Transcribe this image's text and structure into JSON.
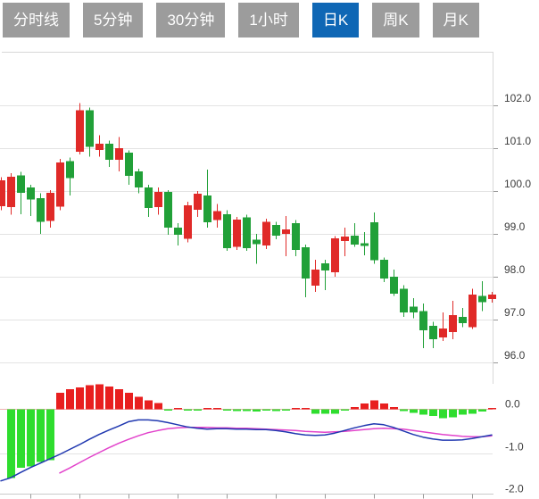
{
  "app": {
    "name": "stock-kline-viewer"
  },
  "tabs": [
    {
      "label": "分时线",
      "active": false
    },
    {
      "label": "5分钟",
      "active": false
    },
    {
      "label": "30分钟",
      "active": false
    },
    {
      "label": "1小时",
      "active": false
    },
    {
      "label": "日K",
      "active": true
    },
    {
      "label": "周K",
      "active": false
    },
    {
      "label": "月K",
      "active": false
    }
  ],
  "colors": {
    "up": "#e02a28",
    "down": "#21a038",
    "macd_up_bar": "#e81f1f",
    "macd_down_bar": "#2edd2e",
    "dif_line": "#2038b0",
    "dea_line": "#e243cb",
    "tab_bg": "#9c9c9c",
    "tab_active_bg": "#0f67b5",
    "grid": "#e3e3e3",
    "border": "#d8d8d8",
    "zero_line": "#eeb0b0",
    "tick": "#999999",
    "axis_text": "#3c3c3c"
  },
  "chart_data": {
    "type": "candlestick",
    "title": "",
    "xlabel": "",
    "ylabel": "",
    "grid": true,
    "legend": false,
    "price_axis": {
      "side": "right",
      "labels": [
        "102.0",
        "101.0",
        "100.0",
        "99.0",
        "98.0",
        "97.0",
        "96.0"
      ],
      "ticks": [
        102.0,
        101.0,
        100.0,
        99.0,
        98.0,
        97.0,
        96.0
      ],
      "range": [
        95.5,
        102.3
      ]
    },
    "macd_axis": {
      "side": "right",
      "labels": [
        "0.0",
        "-1.0",
        "-2.0"
      ],
      "ticks": [
        0.0,
        -1.0,
        -2.0
      ],
      "range": [
        0.7,
        -2.0
      ]
    },
    "candles": [
      {
        "o": 99.65,
        "h": 100.32,
        "l": 99.55,
        "c": 100.25
      },
      {
        "o": 99.63,
        "h": 100.42,
        "l": 99.45,
        "c": 100.33
      },
      {
        "o": 100.36,
        "h": 100.45,
        "l": 99.46,
        "c": 99.96
      },
      {
        "o": 100.08,
        "h": 100.15,
        "l": 99.42,
        "c": 99.8
      },
      {
        "o": 99.83,
        "h": 99.95,
        "l": 99.0,
        "c": 99.28
      },
      {
        "o": 99.3,
        "h": 100.02,
        "l": 99.15,
        "c": 99.96
      },
      {
        "o": 99.63,
        "h": 100.75,
        "l": 99.55,
        "c": 100.67
      },
      {
        "o": 100.7,
        "h": 100.78,
        "l": 99.9,
        "c": 100.3
      },
      {
        "o": 100.92,
        "h": 102.05,
        "l": 100.85,
        "c": 101.89
      },
      {
        "o": 101.89,
        "h": 101.95,
        "l": 100.8,
        "c": 101.03
      },
      {
        "o": 100.96,
        "h": 101.3,
        "l": 100.8,
        "c": 101.1
      },
      {
        "o": 101.1,
        "h": 101.18,
        "l": 100.56,
        "c": 100.73
      },
      {
        "o": 100.73,
        "h": 101.26,
        "l": 100.46,
        "c": 101.0
      },
      {
        "o": 100.9,
        "h": 100.95,
        "l": 100.15,
        "c": 100.35
      },
      {
        "o": 100.46,
        "h": 100.52,
        "l": 99.95,
        "c": 100.08
      },
      {
        "o": 100.08,
        "h": 100.15,
        "l": 99.4,
        "c": 99.6
      },
      {
        "o": 99.63,
        "h": 100.08,
        "l": 99.45,
        "c": 99.98
      },
      {
        "o": 99.98,
        "h": 100.02,
        "l": 98.98,
        "c": 99.15
      },
      {
        "o": 99.15,
        "h": 99.25,
        "l": 98.73,
        "c": 98.98
      },
      {
        "o": 98.88,
        "h": 99.75,
        "l": 98.8,
        "c": 99.67
      },
      {
        "o": 99.56,
        "h": 100.0,
        "l": 99.4,
        "c": 99.94
      },
      {
        "o": 99.9,
        "h": 100.5,
        "l": 99.15,
        "c": 99.27
      },
      {
        "o": 99.32,
        "h": 99.7,
        "l": 99.15,
        "c": 99.53
      },
      {
        "o": 99.46,
        "h": 99.55,
        "l": 98.6,
        "c": 98.67
      },
      {
        "o": 98.7,
        "h": 99.4,
        "l": 98.62,
        "c": 99.33
      },
      {
        "o": 99.39,
        "h": 99.45,
        "l": 98.6,
        "c": 98.67
      },
      {
        "o": 98.86,
        "h": 99.0,
        "l": 98.3,
        "c": 98.76
      },
      {
        "o": 98.73,
        "h": 99.35,
        "l": 98.65,
        "c": 99.28
      },
      {
        "o": 99.21,
        "h": 99.28,
        "l": 98.88,
        "c": 98.96
      },
      {
        "o": 99.0,
        "h": 99.42,
        "l": 98.48,
        "c": 99.1
      },
      {
        "o": 99.25,
        "h": 99.32,
        "l": 98.48,
        "c": 98.63
      },
      {
        "o": 98.69,
        "h": 98.75,
        "l": 97.52,
        "c": 97.96
      },
      {
        "o": 97.79,
        "h": 98.4,
        "l": 97.65,
        "c": 98.17
      },
      {
        "o": 98.31,
        "h": 98.4,
        "l": 97.69,
        "c": 98.15
      },
      {
        "o": 98.1,
        "h": 98.95,
        "l": 98.0,
        "c": 98.9
      },
      {
        "o": 98.83,
        "h": 99.15,
        "l": 98.48,
        "c": 98.94
      },
      {
        "o": 98.96,
        "h": 99.25,
        "l": 98.7,
        "c": 98.75
      },
      {
        "o": 98.78,
        "h": 99.04,
        "l": 98.5,
        "c": 98.72
      },
      {
        "o": 99.27,
        "h": 99.5,
        "l": 98.3,
        "c": 98.38
      },
      {
        "o": 98.4,
        "h": 98.45,
        "l": 97.88,
        "c": 97.96
      },
      {
        "o": 98.0,
        "h": 98.17,
        "l": 97.55,
        "c": 97.6
      },
      {
        "o": 97.72,
        "h": 97.8,
        "l": 97.06,
        "c": 97.17
      },
      {
        "o": 97.3,
        "h": 97.5,
        "l": 97.03,
        "c": 97.17
      },
      {
        "o": 97.2,
        "h": 97.37,
        "l": 96.33,
        "c": 96.75
      },
      {
        "o": 96.85,
        "h": 96.95,
        "l": 96.33,
        "c": 96.54
      },
      {
        "o": 96.58,
        "h": 97.17,
        "l": 96.5,
        "c": 96.79
      },
      {
        "o": 96.71,
        "h": 97.44,
        "l": 96.54,
        "c": 97.1
      },
      {
        "o": 97.06,
        "h": 97.27,
        "l": 96.82,
        "c": 96.92
      },
      {
        "o": 96.82,
        "h": 97.72,
        "l": 96.78,
        "c": 97.58
      },
      {
        "o": 97.55,
        "h": 97.9,
        "l": 97.2,
        "c": 97.41
      },
      {
        "o": 97.48,
        "h": 97.65,
        "l": 97.4,
        "c": 97.58
      }
    ],
    "macd": {
      "histogram": [
        null,
        -1.56,
        -1.32,
        -1.29,
        -1.19,
        -1.15,
        0.37,
        0.45,
        0.5,
        0.55,
        0.57,
        0.52,
        0.45,
        0.37,
        0.28,
        0.2,
        0.14,
        -0.01,
        0.02,
        -0.03,
        -0.03,
        0.02,
        0.01,
        -0.01,
        -0.04,
        -0.04,
        -0.05,
        -0.02,
        -0.04,
        -0.01,
        0.03,
        0.01,
        -0.1,
        -0.1,
        -0.1,
        -0.02,
        0.05,
        0.13,
        0.2,
        0.13,
        0.05,
        -0.04,
        -0.08,
        -0.12,
        -0.15,
        -0.2,
        -0.18,
        -0.12,
        -0.1,
        -0.05,
        0.03
      ],
      "dif": [
        -1.62,
        -1.55,
        -1.43,
        -1.32,
        -1.22,
        -1.12,
        -1.02,
        -0.91,
        -0.8,
        -0.68,
        -0.57,
        -0.47,
        -0.38,
        -0.28,
        -0.24,
        -0.24,
        -0.26,
        -0.3,
        -0.35,
        -0.4,
        -0.43,
        -0.45,
        -0.44,
        -0.44,
        -0.45,
        -0.45,
        -0.46,
        -0.46,
        -0.48,
        -0.51,
        -0.55,
        -0.58,
        -0.59,
        -0.58,
        -0.54,
        -0.48,
        -0.42,
        -0.37,
        -0.33,
        -0.35,
        -0.41,
        -0.49,
        -0.57,
        -0.63,
        -0.67,
        -0.7,
        -0.7,
        -0.69,
        -0.66,
        -0.62,
        -0.58
      ],
      "dea": [
        null,
        null,
        null,
        null,
        null,
        null,
        -1.44,
        -1.33,
        -1.21,
        -1.09,
        -0.98,
        -0.87,
        -0.77,
        -0.68,
        -0.6,
        -0.53,
        -0.48,
        -0.44,
        -0.42,
        -0.41,
        -0.41,
        -0.41,
        -0.42,
        -0.42,
        -0.43,
        -0.43,
        -0.44,
        -0.45,
        -0.46,
        -0.47,
        -0.48,
        -0.5,
        -0.51,
        -0.52,
        -0.51,
        -0.5,
        -0.48,
        -0.46,
        -0.44,
        -0.43,
        -0.44,
        -0.45,
        -0.48,
        -0.51,
        -0.54,
        -0.57,
        -0.59,
        -0.61,
        -0.62,
        -0.62,
        -0.6
      ]
    }
  }
}
